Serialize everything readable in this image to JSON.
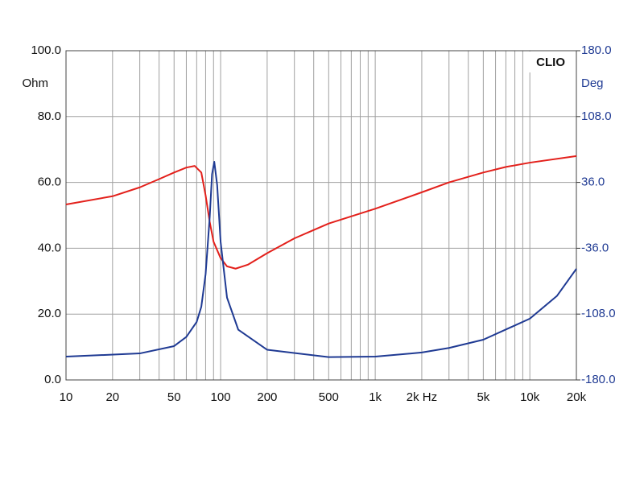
{
  "chart_data": {
    "type": "line",
    "left_unit": "Ohm",
    "right_unit": "Deg",
    "brand": "CLIO",
    "xscale": "log",
    "xlim": [
      10,
      20000
    ],
    "xticks": [
      10,
      20,
      50,
      100,
      200,
      500,
      {
        "value": 1000,
        "label": "1k"
      },
      {
        "value": 2000,
        "label": "2k Hz"
      },
      {
        "value": 5000,
        "label": "5k"
      },
      {
        "value": 10000,
        "label": "10k"
      },
      {
        "value": 20000,
        "label": "20k"
      }
    ],
    "xminorticks": [
      30,
      40,
      60,
      70,
      80,
      90,
      300,
      400,
      600,
      700,
      800,
      900,
      3000,
      4000,
      6000,
      7000,
      8000,
      9000
    ],
    "ylim": [
      0,
      100
    ],
    "yticks": [
      {
        "value": 0,
        "label": "0.0"
      },
      {
        "value": 20,
        "label": "20.0"
      },
      {
        "value": 40,
        "label": "40.0"
      },
      {
        "value": 60,
        "label": "60.0"
      },
      {
        "value": 80,
        "label": "80.0"
      },
      {
        "value": 100,
        "label": "100.0"
      }
    ],
    "y2lim": [
      -180,
      180
    ],
    "y2ticks": [
      {
        "value": -180,
        "label": "-180.0"
      },
      {
        "value": -108,
        "label": "-108.0"
      },
      {
        "value": -36,
        "label": "-36.0"
      },
      {
        "value": 36,
        "label": "36.0"
      },
      {
        "value": 108,
        "label": "108.0"
      },
      {
        "value": 180,
        "label": "180.0"
      }
    ],
    "y2color": "#1f3a93",
    "grid": true,
    "series": [
      {
        "color": "#e3201b",
        "axis": "y",
        "x": [
          10,
          20,
          30,
          40,
          50,
          60,
          68,
          75,
          80,
          85,
          90,
          100,
          110,
          125,
          150,
          200,
          300,
          500,
          1000,
          2000,
          3000,
          5000,
          7000,
          10000,
          20000
        ],
        "values": [
          53.3,
          55.8,
          58.5,
          61,
          63,
          64.5,
          65,
          63,
          56,
          48,
          42,
          37,
          34.5,
          33.8,
          35,
          38.5,
          43,
          47.5,
          52,
          57,
          60,
          63,
          64.7,
          66,
          68
        ]
      },
      {
        "color": "#1f3a93",
        "axis": "y2",
        "x": [
          10,
          30,
          50,
          60,
          70,
          75,
          80,
          85,
          88,
          91,
          95,
          100,
          110,
          130,
          200,
          500,
          1000,
          2000,
          3000,
          5000,
          10000,
          15000,
          20000
        ],
        "values": [
          -154.5,
          -151,
          -143,
          -133,
          -116.6,
          -100,
          -64,
          -2,
          45,
          58.5,
          33,
          -29,
          -90,
          -125,
          -147,
          -155,
          -154.5,
          -150,
          -145,
          -136,
          -113,
          -88,
          -58.5
        ]
      }
    ]
  }
}
